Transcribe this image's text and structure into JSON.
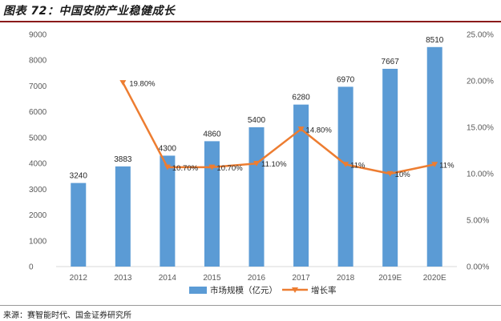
{
  "figure_title": "图表 72：中国安防产业稳健成长",
  "source": "来源：赛智能时代、国金证券研究所",
  "colors": {
    "bar": "#5b9bd5",
    "line": "#ed7d31",
    "axis_text": "#595959",
    "grid": "#d9d9d9",
    "title_rule": "#8b1a1a"
  },
  "chart_data": {
    "type": "bar",
    "title": "中国安防产业稳健成长",
    "categories": [
      "2012",
      "2013",
      "2014",
      "2015",
      "2016",
      "2017",
      "2018",
      "2019E",
      "2020E"
    ],
    "series": [
      {
        "name": "市场规模（亿元）",
        "type": "bar",
        "axis": "left",
        "values": [
          3240,
          3883,
          4300,
          4860,
          5400,
          6280,
          6970,
          7667,
          8510
        ],
        "labels": [
          "3240",
          "3883",
          "4300",
          "4860",
          "5400",
          "6280",
          "6970",
          "7667",
          "8510"
        ]
      },
      {
        "name": "增长率",
        "type": "line",
        "axis": "right",
        "values": [
          null,
          19.8,
          10.7,
          10.7,
          11.1,
          14.8,
          11,
          10,
          11
        ],
        "labels": [
          "",
          "19.80%",
          "10.70%",
          "10.70%",
          "11.10%",
          "14.80%",
          "11%",
          "10%",
          "11%"
        ]
      }
    ],
    "y_left": {
      "min": 0,
      "max": 9000,
      "ticks": [
        0,
        1000,
        2000,
        3000,
        4000,
        5000,
        6000,
        7000,
        8000,
        9000
      ]
    },
    "y_right": {
      "min": 0,
      "max": 25,
      "ticks": [
        0,
        5,
        10,
        15,
        20,
        25
      ],
      "tick_labels": [
        "0.00%",
        "5.00%",
        "10.00%",
        "15.00%",
        "20.00%",
        "25.00%"
      ]
    },
    "grid": false,
    "legend_position": "bottom"
  }
}
